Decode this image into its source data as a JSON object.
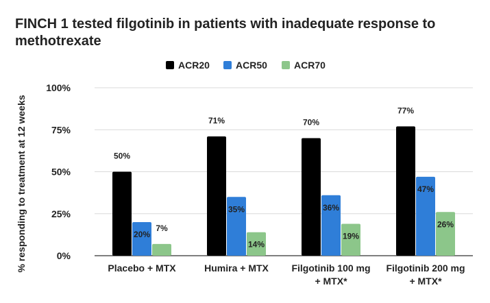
{
  "chart_data": {
    "type": "bar",
    "title_lines": [
      "FINCH 1 tested filgotinib in patients with inadequate response to",
      "methotrexate"
    ],
    "ylabel": "% responding to treatment at 12 weeks",
    "xlabel": "",
    "ylim": [
      0,
      100
    ],
    "yticks": [
      {
        "value": 0,
        "label": "0%"
      },
      {
        "value": 25,
        "label": "25%"
      },
      {
        "value": 50,
        "label": "50%"
      },
      {
        "value": 75,
        "label": "75%"
      },
      {
        "value": 100,
        "label": "100%"
      }
    ],
    "grid": true,
    "legend_position": "top",
    "categories": [
      [
        "Placebo + MTX"
      ],
      [
        "Humira + MTX"
      ],
      [
        "Filgotinib 100 mg",
        "+ MTX*"
      ],
      [
        "Filgotinib 200 mg",
        "+ MTX*"
      ]
    ],
    "series": [
      {
        "name": "ACR20",
        "color": "#000000",
        "values": [
          50,
          71,
          70,
          77
        ],
        "labels": [
          "50%",
          "71%",
          "70%",
          "77%"
        ],
        "label_inside": false
      },
      {
        "name": "ACR50",
        "color": "#2f7ed8",
        "values": [
          20,
          35,
          36,
          47
        ],
        "labels": [
          "20%",
          "35%",
          "36%",
          "47%"
        ],
        "label_inside": true
      },
      {
        "name": "ACR70",
        "color": "#8cc68a",
        "values": [
          7,
          14,
          19,
          26
        ],
        "labels": [
          "7%",
          "14%",
          "19%",
          "26%"
        ],
        "label_inside": "auto"
      }
    ]
  }
}
